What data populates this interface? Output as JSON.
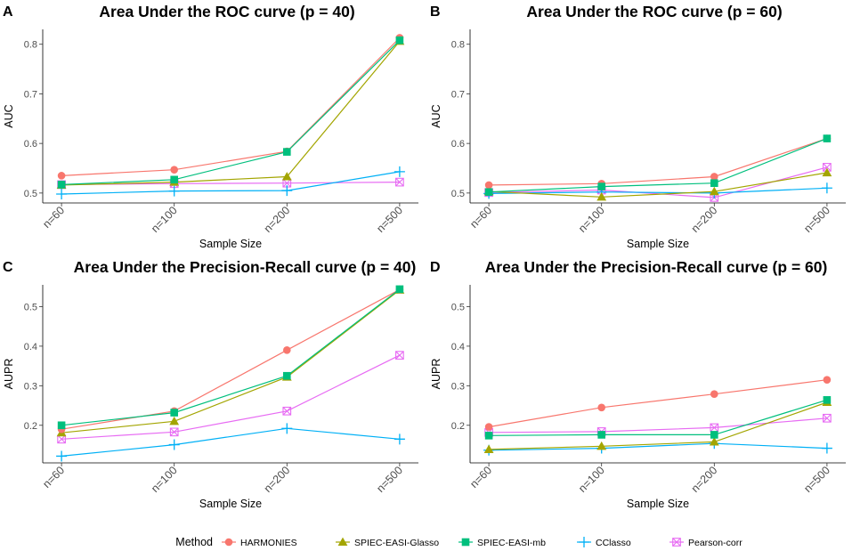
{
  "legend": {
    "title": "Method",
    "entries": [
      {
        "name": "HARMONIES",
        "color": "#F8766D",
        "shape": "circle"
      },
      {
        "name": "SPIEC-EASI-Glasso",
        "color": "#A3A500",
        "shape": "triangle"
      },
      {
        "name": "SPIEC-EASI-mb",
        "color": "#00BF7D",
        "shape": "square"
      },
      {
        "name": "CClasso",
        "color": "#00B0F6",
        "shape": "plus"
      },
      {
        "name": "Pearson-corr",
        "color": "#E76BF3",
        "shape": "boxx"
      }
    ]
  },
  "chart_data": [
    {
      "panel": "A",
      "type": "line",
      "title": "Area Under the ROC curve (p = 40)",
      "xlabel": "Sample Size",
      "ylabel": "AUC",
      "categories": [
        "n=60",
        "n=100",
        "n=200",
        "n=500"
      ],
      "ylim": [
        0.48,
        0.83
      ],
      "yticks": [
        0.5,
        0.6,
        0.7,
        0.8
      ],
      "ytick_labels": [
        "0.5",
        "0.6",
        "0.7",
        "0.8"
      ],
      "series": [
        {
          "name": "HARMONIES",
          "values": [
            0.535,
            0.547,
            0.584,
            0.813
          ]
        },
        {
          "name": "SPIEC-EASI-Glasso",
          "values": [
            0.516,
            0.522,
            0.533,
            0.806
          ]
        },
        {
          "name": "SPIEC-EASI-mb",
          "values": [
            0.517,
            0.527,
            0.583,
            0.808
          ]
        },
        {
          "name": "CClasso",
          "values": [
            0.498,
            0.504,
            0.505,
            0.543
          ]
        },
        {
          "name": "Pearson-corr",
          "values": [
            0.517,
            0.519,
            0.52,
            0.522
          ]
        }
      ]
    },
    {
      "panel": "B",
      "type": "line",
      "title": "Area Under the ROC curve (p = 60)",
      "xlabel": "Sample Size",
      "ylabel": "AUC",
      "categories": [
        "n=60",
        "n=100",
        "n=200",
        "n=500"
      ],
      "ylim": [
        0.48,
        0.83
      ],
      "yticks": [
        0.5,
        0.6,
        0.7,
        0.8
      ],
      "ytick_labels": [
        "0.5",
        "0.6",
        "0.7",
        "0.8"
      ],
      "series": [
        {
          "name": "HARMONIES",
          "values": [
            0.516,
            0.519,
            0.533,
            0.61
          ]
        },
        {
          "name": "SPIEC-EASI-Glasso",
          "values": [
            0.503,
            0.492,
            0.503,
            0.541
          ]
        },
        {
          "name": "SPIEC-EASI-mb",
          "values": [
            0.502,
            0.513,
            0.52,
            0.61
          ]
        },
        {
          "name": "CClasso",
          "values": [
            0.499,
            0.502,
            0.5,
            0.51
          ]
        },
        {
          "name": "Pearson-corr",
          "values": [
            0.501,
            0.506,
            0.491,
            0.552
          ]
        }
      ]
    },
    {
      "panel": "C",
      "type": "line",
      "title": "Area Under the Precision-Recall curve (p = 40)",
      "xlabel": "Sample Size",
      "ylabel": "AUPR",
      "categories": [
        "n=60",
        "n=100",
        "n=200",
        "n=500"
      ],
      "ylim": [
        0.105,
        0.555
      ],
      "yticks": [
        0.2,
        0.3,
        0.4,
        0.5
      ],
      "ytick_labels": [
        "0.2",
        "0.3",
        "0.4",
        "0.5"
      ],
      "series": [
        {
          "name": "HARMONIES",
          "values": [
            0.19,
            0.236,
            0.39,
            0.543
          ]
        },
        {
          "name": "SPIEC-EASI-Glasso",
          "values": [
            0.181,
            0.21,
            0.322,
            0.542
          ]
        },
        {
          "name": "SPIEC-EASI-mb",
          "values": [
            0.2,
            0.232,
            0.325,
            0.544
          ]
        },
        {
          "name": "CClasso",
          "values": [
            0.122,
            0.151,
            0.192,
            0.165
          ]
        },
        {
          "name": "Pearson-corr",
          "values": [
            0.165,
            0.183,
            0.236,
            0.377
          ]
        }
      ]
    },
    {
      "panel": "D",
      "type": "line",
      "title": "Area Under the Precision-Recall curve (p = 60)",
      "xlabel": "Sample Size",
      "ylabel": "AUPR",
      "categories": [
        "n=60",
        "n=100",
        "n=200",
        "n=500"
      ],
      "ylim": [
        0.105,
        0.555
      ],
      "yticks": [
        0.2,
        0.3,
        0.4,
        0.5
      ],
      "ytick_labels": [
        "0.2",
        "0.3",
        "0.4",
        "0.5"
      ],
      "series": [
        {
          "name": "HARMONIES",
          "values": [
            0.196,
            0.245,
            0.279,
            0.315
          ]
        },
        {
          "name": "SPIEC-EASI-Glasso",
          "values": [
            0.139,
            0.147,
            0.158,
            0.258
          ]
        },
        {
          "name": "SPIEC-EASI-mb",
          "values": [
            0.174,
            0.176,
            0.176,
            0.264
          ]
        },
        {
          "name": "CClasso",
          "values": [
            0.137,
            0.142,
            0.154,
            0.142
          ]
        },
        {
          "name": "Pearson-corr",
          "values": [
            0.182,
            0.184,
            0.194,
            0.218
          ]
        }
      ]
    }
  ]
}
